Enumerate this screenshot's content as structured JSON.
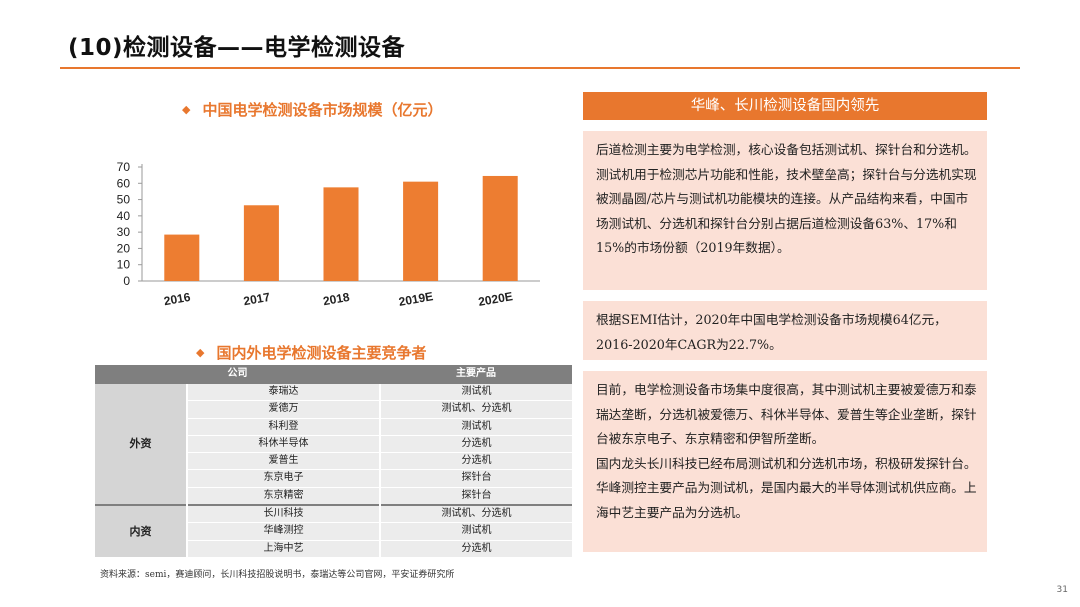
{
  "title": "(10)检测设备——电学检测设备",
  "chart_heading": "中国电学检测设备市场规模（亿元）",
  "table_heading": "国内外电学检测设备主要竞争者",
  "bullet": "◆",
  "chart_data": {
    "type": "bar",
    "title": "中国电学检测设备市场规模（亿元）",
    "categories": [
      "2016",
      "2017",
      "2018",
      "2019E",
      "2020E"
    ],
    "values": [
      28.5,
      46.5,
      57.5,
      61,
      64.5
    ],
    "ylim": [
      0,
      70
    ],
    "yticks": [
      0,
      10,
      20,
      30,
      40,
      50,
      60,
      70
    ],
    "bar_color": "#ed7d31",
    "grid": false
  },
  "table": {
    "headers": [
      "公司",
      "主要产品"
    ],
    "groups": [
      {
        "name": "外资",
        "rows": [
          [
            "泰瑞达",
            "测试机"
          ],
          [
            "爱德万",
            "测试机、分选机"
          ],
          [
            "科利登",
            "测试机"
          ],
          [
            "科休半导体",
            "分选机"
          ],
          [
            "爱普生",
            "分选机"
          ],
          [
            "东京电子",
            "探针台"
          ],
          [
            "东京精密",
            "探针台"
          ]
        ]
      },
      {
        "name": "内资",
        "rows": [
          [
            "长川科技",
            "测试机、分选机"
          ],
          [
            "华峰测控",
            "测试机"
          ],
          [
            "上海中艺",
            "分选机"
          ]
        ]
      }
    ]
  },
  "panel": {
    "heading": "华峰、长川检测设备国内领先",
    "box1": "后道检测主要为电学检测，核心设备包括测试机、探针台和分选机。测试机用于检测芯片功能和性能，技术壁垒高；探针台与分选机实现被测晶圆/芯片与测试机功能模块的连接。从产品结构来看，中国市场测试机、分选机和探针台分别占据后道检测设备63%、17%和15%的市场份额（2019年数据）。",
    "box2": "根据SEMI估计，2020年中国电学检测设备市场规模64亿元，2016-2020年CAGR为22.7%。",
    "box3_p1": "目前，电学检测设备市场集中度很高，其中测试机主要被爱德万和泰瑞达垄断，分选机被爱德万、科休半导体、爱普生等企业垄断，探针台被东京电子、东京精密和伊智所垄断。",
    "box3_p2": "国内龙头长川科技已经布局测试机和分选机市场，积极研发探针台。华峰测控主要产品为测试机，是国内最大的半导体测试机供应商。上海中艺主要产品为分选机。"
  },
  "source": "资料来源：semi，赛迪顾问，长川科技招股说明书，泰瑞达等公司官网，平安证券研究所",
  "page_number": "31",
  "colors": {
    "accent": "#e8772e",
    "panel_bg": "#fbe0d6",
    "table_header": "#7f7f7f"
  }
}
